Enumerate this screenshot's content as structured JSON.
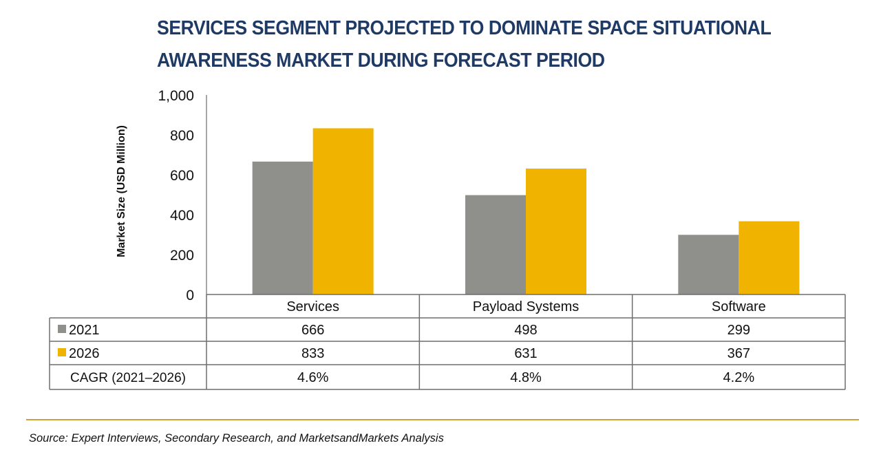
{
  "title_lines": [
    "SERVICES SEGMENT PROJECTED TO DOMINATE SPACE SITUATIONAL",
    "AWARENESS MARKET DURING FORECAST PERIOD"
  ],
  "source": "Source: Expert Interviews, Secondary Research, and MarketsandMarkets Analysis",
  "colors": {
    "s2021": "#8f8f8c",
    "s2026": "#f0b400",
    "title": "#1f3a64",
    "rule": "#c9a23a"
  },
  "chart_data": {
    "type": "bar",
    "title": "SERVICES SEGMENT PROJECTED TO DOMINATE SPACE SITUATIONAL AWARENESS MARKET DURING FORECAST PERIOD",
    "ylabel": "Market Size (USD Million)",
    "xlabel": "",
    "ylim": [
      0,
      1000
    ],
    "yticks": [
      0,
      200,
      400,
      600,
      800,
      1000
    ],
    "ytick_labels": [
      "0",
      "200",
      "400",
      "600",
      "800",
      "1,000"
    ],
    "categories": [
      "Services",
      "Payload Systems",
      "Software"
    ],
    "series": [
      {
        "name": "2021",
        "values": [
          666,
          498,
          299
        ],
        "labels": [
          "666",
          "498",
          "299"
        ]
      },
      {
        "name": "2026",
        "values": [
          833,
          631,
          367
        ],
        "labels": [
          "833",
          "631",
          "367"
        ]
      }
    ],
    "table_rows": [
      {
        "label": "CAGR (2021–2026)",
        "values": [
          "4.6%",
          "4.8%",
          "4.2%"
        ]
      }
    ]
  }
}
